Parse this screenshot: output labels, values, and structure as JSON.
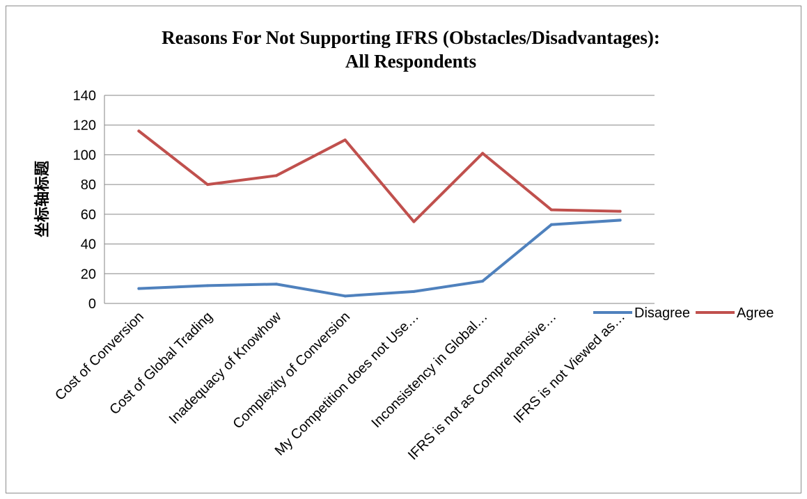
{
  "chart_data": {
    "type": "line",
    "title": [
      "Reasons For Not Supporting IFRS (Obstacles/Disadvantages):",
      "All Respondents"
    ],
    "xlabel": "",
    "ylabel": "坐标轴标题",
    "ylim": [
      0,
      140
    ],
    "yticks": [
      "0",
      "20",
      "40",
      "60",
      "80",
      "100",
      "120",
      "140"
    ],
    "categories": [
      "Cost of Conversion",
      "Cost of Global Trading",
      "Inadequacy of Knowhow",
      "Complexity of Conversion",
      "My Competition does not Use…",
      "Inconsistency in Global…",
      "IFRS is not as Comprehensive…",
      "IFRS is not Viewed as…"
    ],
    "series": [
      {
        "name": "Disagree",
        "color": "#4f81bd",
        "values": [
          10,
          12,
          13,
          5,
          8,
          15,
          53,
          56
        ]
      },
      {
        "name": "Agree",
        "color": "#c0504d",
        "values": [
          116,
          80,
          86,
          110,
          55,
          101,
          63,
          62
        ]
      }
    ],
    "grid": true,
    "legend": "bottom-right"
  }
}
